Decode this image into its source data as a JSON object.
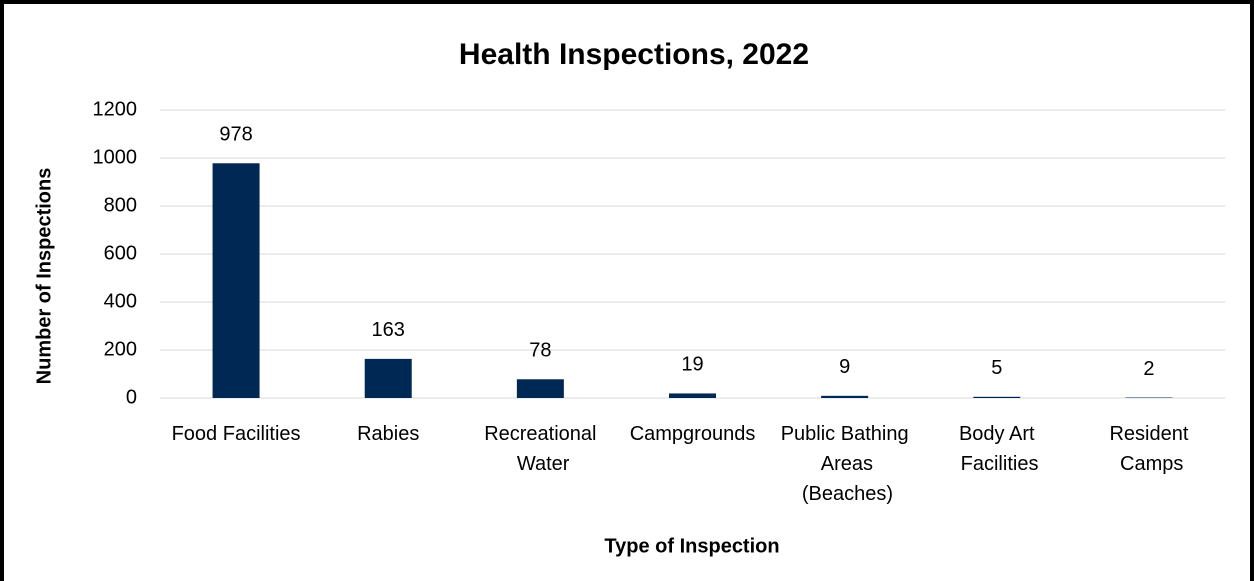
{
  "chart_data": {
    "type": "bar",
    "title": "Health Inspections, 2022",
    "x_label": "Type of Inspection",
    "y_label": "Number of Inspections",
    "categories": [
      "Food Facilities",
      "Rabies",
      "Recreational Water",
      "Campgrounds",
      "Public Bathing Areas (Beaches)",
      "Body Art Facilities",
      "Resident Camps"
    ],
    "values": [
      978,
      163,
      78,
      19,
      9,
      5,
      2
    ],
    "color": "#002855",
    "ylim": [
      0,
      1200
    ],
    "yticks": [
      0,
      200,
      400,
      600,
      800,
      1000,
      1200
    ],
    "grid": true
  }
}
